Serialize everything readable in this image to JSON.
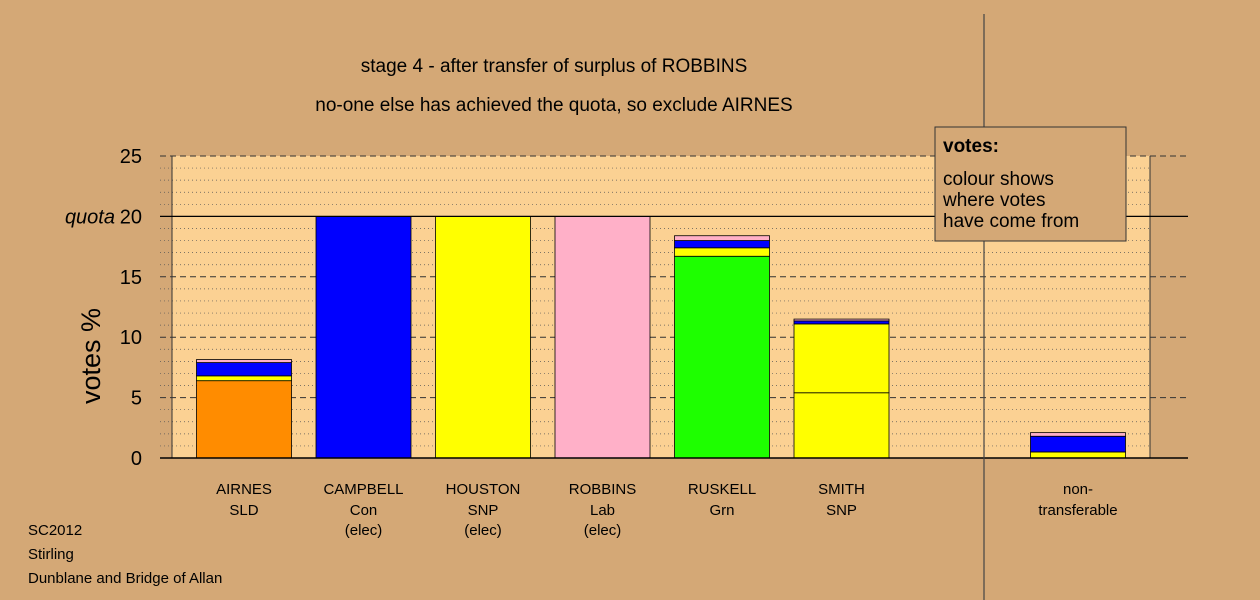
{
  "colors": {
    "background": "#d4a876",
    "plot_area": "#fbd193",
    "legend_box": "#d4a876",
    "orange": "#ff8c00",
    "blue": "#0000ff",
    "yellow": "#ffff00",
    "pink": "#ffb0c8",
    "green": "#1eff00"
  },
  "footer": {
    "line1": "SC2012",
    "line2": "Stirling",
    "line3": "Dunblane and Bridge of Allan"
  },
  "chart_data": {
    "type": "bar",
    "stacked": true,
    "title": "stage 4 - after transfer of surplus of ROBBINS",
    "subtitle": "no-one else has achieved the quota, so exclude AIRNES",
    "ylabel": "votes %",
    "ylim": [
      0,
      25
    ],
    "yticks": [
      0,
      5,
      10,
      15,
      20,
      25
    ],
    "quota": 20,
    "quota_label": "quota",
    "grid": true,
    "legend": {
      "title": "votes:",
      "lines": [
        "colour shows",
        "where votes",
        "have come from"
      ],
      "placement": "top-right"
    },
    "categories": [
      {
        "name": "AIRNES",
        "party": "SLD",
        "note": "",
        "segments": [
          {
            "color": "orange",
            "value": 6.4
          },
          {
            "color": "yellow",
            "value": 0.4
          },
          {
            "color": "blue",
            "value": 1.1
          },
          {
            "color": "pink",
            "value": 0.25
          }
        ]
      },
      {
        "name": "CAMPBELL",
        "party": "Con",
        "note": "(elec)",
        "segments": [
          {
            "color": "blue",
            "value": 20
          }
        ]
      },
      {
        "name": "HOUSTON",
        "party": "SNP",
        "note": "(elec)",
        "segments": [
          {
            "color": "yellow",
            "value": 20
          }
        ]
      },
      {
        "name": "ROBBINS",
        "party": "Lab",
        "note": "(elec)",
        "segments": [
          {
            "color": "pink",
            "value": 20
          }
        ]
      },
      {
        "name": "RUSKELL",
        "party": "Grn",
        "note": "",
        "segments": [
          {
            "color": "green",
            "value": 16.7
          },
          {
            "color": "yellow",
            "value": 0.7
          },
          {
            "color": "blue",
            "value": 0.6
          },
          {
            "color": "pink",
            "value": 0.4
          }
        ]
      },
      {
        "name": "SMITH",
        "party": "SNP",
        "note": "",
        "segments": [
          {
            "color": "yellow",
            "value": 5.4
          },
          {
            "color": "yellow",
            "value": 5.7
          },
          {
            "color": "blue",
            "value": 0.25
          },
          {
            "color": "pink",
            "value": 0.15
          }
        ]
      }
    ],
    "non_transferable": {
      "label_line1": "non-",
      "label_line2": "transferable",
      "segments": [
        {
          "color": "yellow",
          "value": 0.5
        },
        {
          "color": "blue",
          "value": 1.3
        },
        {
          "color": "pink",
          "value": 0.3
        }
      ]
    }
  }
}
